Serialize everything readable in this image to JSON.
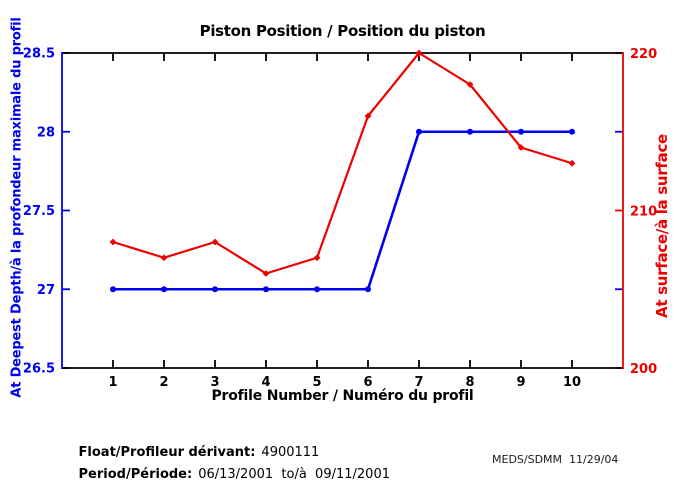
{
  "title": "Piston Position / Position du piston",
  "xlabel": "Profile Number / Numéro du profil",
  "ylabel_left": "At Deepest Depth/à la profondeur maximale du profil",
  "ylabel_right": "At surface/à la surface",
  "footer": {
    "float_label": "Float/Profileur dérivant:",
    "float_value": "4900111",
    "period_label": "Period/Période:",
    "period_value": "06/13/2001  to/à  09/11/2001",
    "credit": "MEDS/SDMM  11/29/04"
  },
  "colors": {
    "left_axis": "#0000f0",
    "right_axis": "#ec0000",
    "frame": "#000000"
  },
  "chart_data": {
    "type": "line",
    "title": "Piston Position / Position du piston",
    "xlabel": "Profile Number / Numéro du profil",
    "x": [
      1,
      2,
      3,
      4,
      5,
      6,
      7,
      8,
      9,
      10
    ],
    "x_ticks": [
      "1",
      "2",
      "3",
      "4",
      "5",
      "6",
      "7",
      "8",
      "9",
      "10"
    ],
    "xlim": [
      0,
      11
    ],
    "left_axis": {
      "label": "At Deepest Depth/à la profondeur maximale du profil",
      "ticks": [
        26.5,
        27,
        27.5,
        28,
        28.5
      ],
      "lim": [
        26.5,
        28.5
      ],
      "color": "#0000f0"
    },
    "right_axis": {
      "label": "At surface/à la surface",
      "ticks": [
        200,
        210,
        220
      ],
      "lim": [
        200,
        220
      ],
      "color": "#ec0000",
      "mirror_left_ticks": [
        27,
        28
      ]
    },
    "series": [
      {
        "name": "piston-at-deepest-depth",
        "axis": "left",
        "color": "#0000f0",
        "marker": "circle",
        "values": [
          27,
          27,
          27,
          27,
          27,
          27,
          28,
          28,
          28,
          28
        ]
      },
      {
        "name": "piston-at-surface",
        "axis": "right",
        "color": "#ec0000",
        "marker": "diamond",
        "values": [
          208,
          207,
          208,
          206,
          207,
          216,
          220,
          218,
          214,
          213
        ]
      }
    ],
    "grid": false,
    "legend": "none"
  }
}
